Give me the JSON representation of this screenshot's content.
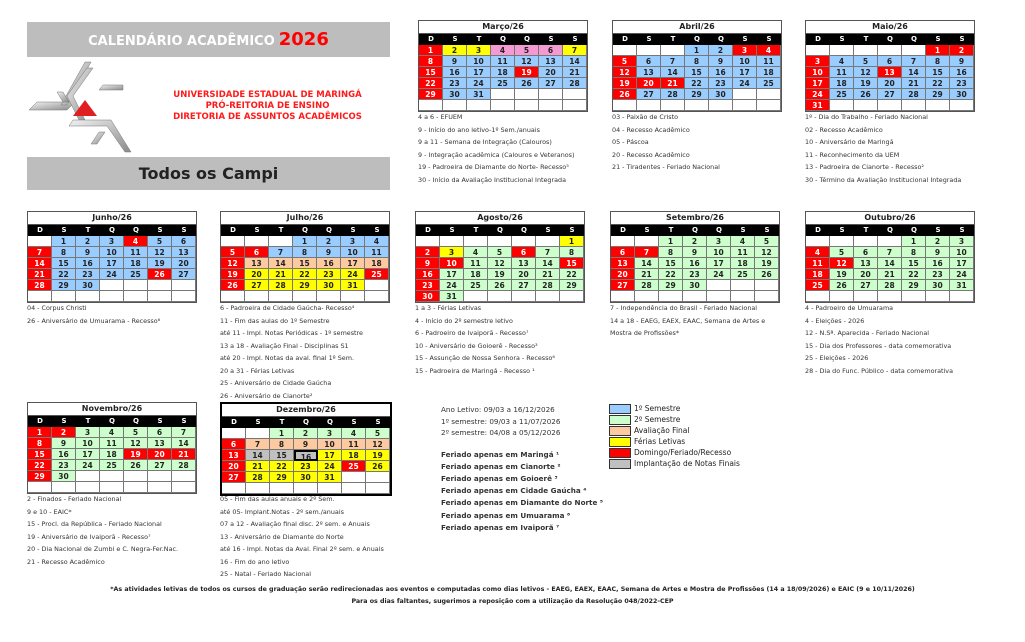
{
  "header": {
    "title": "CALENDÁRIO ACADÊMICO",
    "year": "2026",
    "university": "UNIVERSIDADE ESTADUAL DE MARINGÁ",
    "dept1": "PRÓ-REITORIA DE ENSINO",
    "dept2": "DIRETORIA DE ASSUNTOS ACADÊMICOS",
    "campus": "Todos os Campi",
    "logo_colors": {
      "accent": "#e02020",
      "metal": "#b0b0b0"
    }
  },
  "weekdays": [
    "D",
    "S",
    "T",
    "Q",
    "Q",
    "S",
    "S"
  ],
  "color_codes": {
    "b": "#99ccff",
    "g": "#ccffcc",
    "o": "#fcc9a0",
    "y": "#ffff00",
    "r": "#ff0000",
    "p": "#f49ad3",
    "x": "#c0c0c0"
  },
  "months": [
    {
      "title": "Março/26",
      "year": 2026,
      "month": 3,
      "days": 31,
      "colors": "ryypppyrbbbbbbrbbbrbbrbbbbbbrbb",
      "notes": [
        "4 a 6 - EFUEM",
        "9 - Início do ano letivo-1º Sem./anuais",
        "9 a 11 - Semana de Integração (Calouros)",
        "9 - Integração acadêmica (Calouros e Veteranos)",
        "19 - Padroeira de Diamante do Norte- Recesso⁵",
        "30 - Início da Avaliação Institucional Integrada"
      ]
    },
    {
      "title": "Abril/26",
      "year": 2026,
      "month": 4,
      "days": 30,
      "colors": "bbrrrbbbbbbrbbbbbbrrrbbbbrbbbb",
      "notes": [
        "03 - Paixão de Cristo",
        "04 - Recesso Acadêmico",
        "05 - Páscoa",
        "20 - Recesso Acadêmico",
        "21 - Tiradentes - Feriado Nacional"
      ]
    },
    {
      "title": "Maio/26",
      "year": 2026,
      "month": 5,
      "days": 31,
      "colors": "rrrbbbbbbrbbrbbbrbbbbbbrbbbbbbr",
      "notes": [
        "1º - Dia do Trabalho - Feriado Nacional",
        "02 - Recesso Acadêmico",
        "10 - Aniversário de Maringá",
        "11 - Reconhecimento da UEM",
        "13 - Padroeira de Cianorte - Recesso²",
        "30 - Término da Avaliação Institucional Integrada"
      ]
    },
    {
      "title": "Junho/26",
      "year": 2026,
      "month": 6,
      "days": 30,
      "colors": "bbbrbbrbbbbbbrbbbbbbrbbbbrbrbb",
      "notes": [
        "04 - Corpus Christi",
        "26 - Aniversário de Umuarama - Recesso⁶"
      ]
    },
    {
      "title": "Julho/26",
      "year": 2026,
      "month": 7,
      "days": 31,
      "colors": "bbbbrrbbbbbroooooorYyyyyrryyyyy",
      "notes": [
        "6 - Padroeira de Cidade  Gaúcha- Recesso⁴",
        "11 - Fim das aulas do 1º  Semestre",
        "até 11 - Impl. Notas Periódicas - 1º semestre",
        "13 a 18 - Avaliação Final - Disciplinas S1",
        "até 20 - Impl. Notas da aval. final 1º Sem.",
        "20 a 31 - Férias Letivas",
        "25 - Aniversário de Cidade Gaúcha",
        "26 - Aniversário de Cianorte²"
      ]
    },
    {
      "title": "Agosto/26",
      "year": 2026,
      "month": 8,
      "days": 31,
      "colors": "yryggrggrrggggrrggggggrggggggrg",
      "notes": [
        "1 a 3 - Férias Letivas",
        "4 - Início do 2º semestre letivo",
        "6 - Padroeiro de Ivaiporã - Recesso⁷",
        "10 - Aniversário de Goioerê - Recesso³",
        "15 - Assunção de Nossa Senhora - Recesso⁶",
        "15 - Padroeira de Maringá - Recesso ¹"
      ]
    },
    {
      "title": "Setembro/26",
      "year": 2026,
      "month": 9,
      "days": 30,
      "colors": "gggggrrgggggrggggggrggggggrggg",
      "notes": [
        "7 - Independência do Brasil - Feriado Nacional",
        "14 a 18 - EAEG, EAEX, EAAC, Semana de Artes e",
        "Mostra de Profissões*"
      ]
    },
    {
      "title": "Outubro/26",
      "year": 2026,
      "month": 10,
      "days": 31,
      "colors": "gggrggggggrrgggggrggggggrgggggg",
      "notes": [
        "4 - Padroeiro de Umuarama",
        "4 - Eleições - 2026",
        "12 - N.Sª. Aparecida - Feriado Nacional",
        "15 - Dia dos Professores - data comemorativa",
        "25 - Eleições - 2026",
        "28 - Dia do Func. Público - data comemorativa"
      ]
    },
    {
      "title": "Novembro/26",
      "year": 2026,
      "month": 11,
      "days": 30,
      "colors": "rrgggggrggggggrgggrrrrggggggrg",
      "notes": [
        "2 - Finados - Feriado Nacional",
        "9 e 10 - EAIC*",
        "15 - Procl. da República - Feriado Nacional",
        "19 - Aniversário de Ivaiporã - Recesso⁷",
        "20 - Dia Nacional de Zumbi e C. Negra-Fer.Nac.",
        "21 - Recesso Acadêmico"
      ]
    },
    {
      "title": "Dezembro/26",
      "year": 2026,
      "month": 12,
      "days": 31,
      "colors": "gggggroooooorxxXyyyryyyyryryyyy",
      "notes": [
        "05 - Fim das aulas anuais e 2º  Sem.",
        "até 05- Implant.Notas - 2º sem./anuais",
        "07 a 12 - Avaliação final disc. 2º sem. e Anuais",
        "13 - Aniversário de Diamante do Norte",
        "até 16 - Impl. Notas da Aval. Final 2º sem. e Anuais",
        "16 - Fim do ano letivo",
        "25 - Natal - Feriado Nacional"
      ]
    }
  ],
  "info": {
    "ano_letivo": "Ano Letivo: 09/03 a 16/12/2026",
    "sem1": "1º semestre: 09/03 a 11/07/2026",
    "sem2": "2º semestre: 04/08 a 05/12/2026",
    "feriados": [
      "Feriado apenas em Maringá ¹",
      "Feriado apenas em Cianorte ²",
      "Feriado apenas em Goioerê ³",
      "Feriado apenas em Cidade Gaúcha ⁴",
      "Feriado apenas em Diamante do Norte ⁵",
      "Feriado apenas em Umuarama ⁶",
      "Feriado apenas em Ivaiporã ⁷"
    ]
  },
  "legend": [
    {
      "code": "b",
      "label": "1º Semestre"
    },
    {
      "code": "g",
      "label": "2º Semestre"
    },
    {
      "code": "o",
      "label": "Avaliação Final"
    },
    {
      "code": "y",
      "label": "Férias Letivas"
    },
    {
      "code": "r",
      "label": "Domingo/Feriado/Recesso"
    },
    {
      "code": "x",
      "label": "Implantação de Notas Finais"
    }
  ],
  "footer": {
    "line1": "*As atividades letivas de todos os cursos de graduação serão redirecionadas aos eventos e computadas como dias letivos - EAEG, EAEX, EAAC, Semana de Artes e Mostra de Profissões (14 a 18/09/2026) e EAIC (9 e 10/11/2026)",
    "line2": "Para os dias faltantes, sugerimos a reposição com a  utilização da Resolução 048/2022-CEP"
  }
}
